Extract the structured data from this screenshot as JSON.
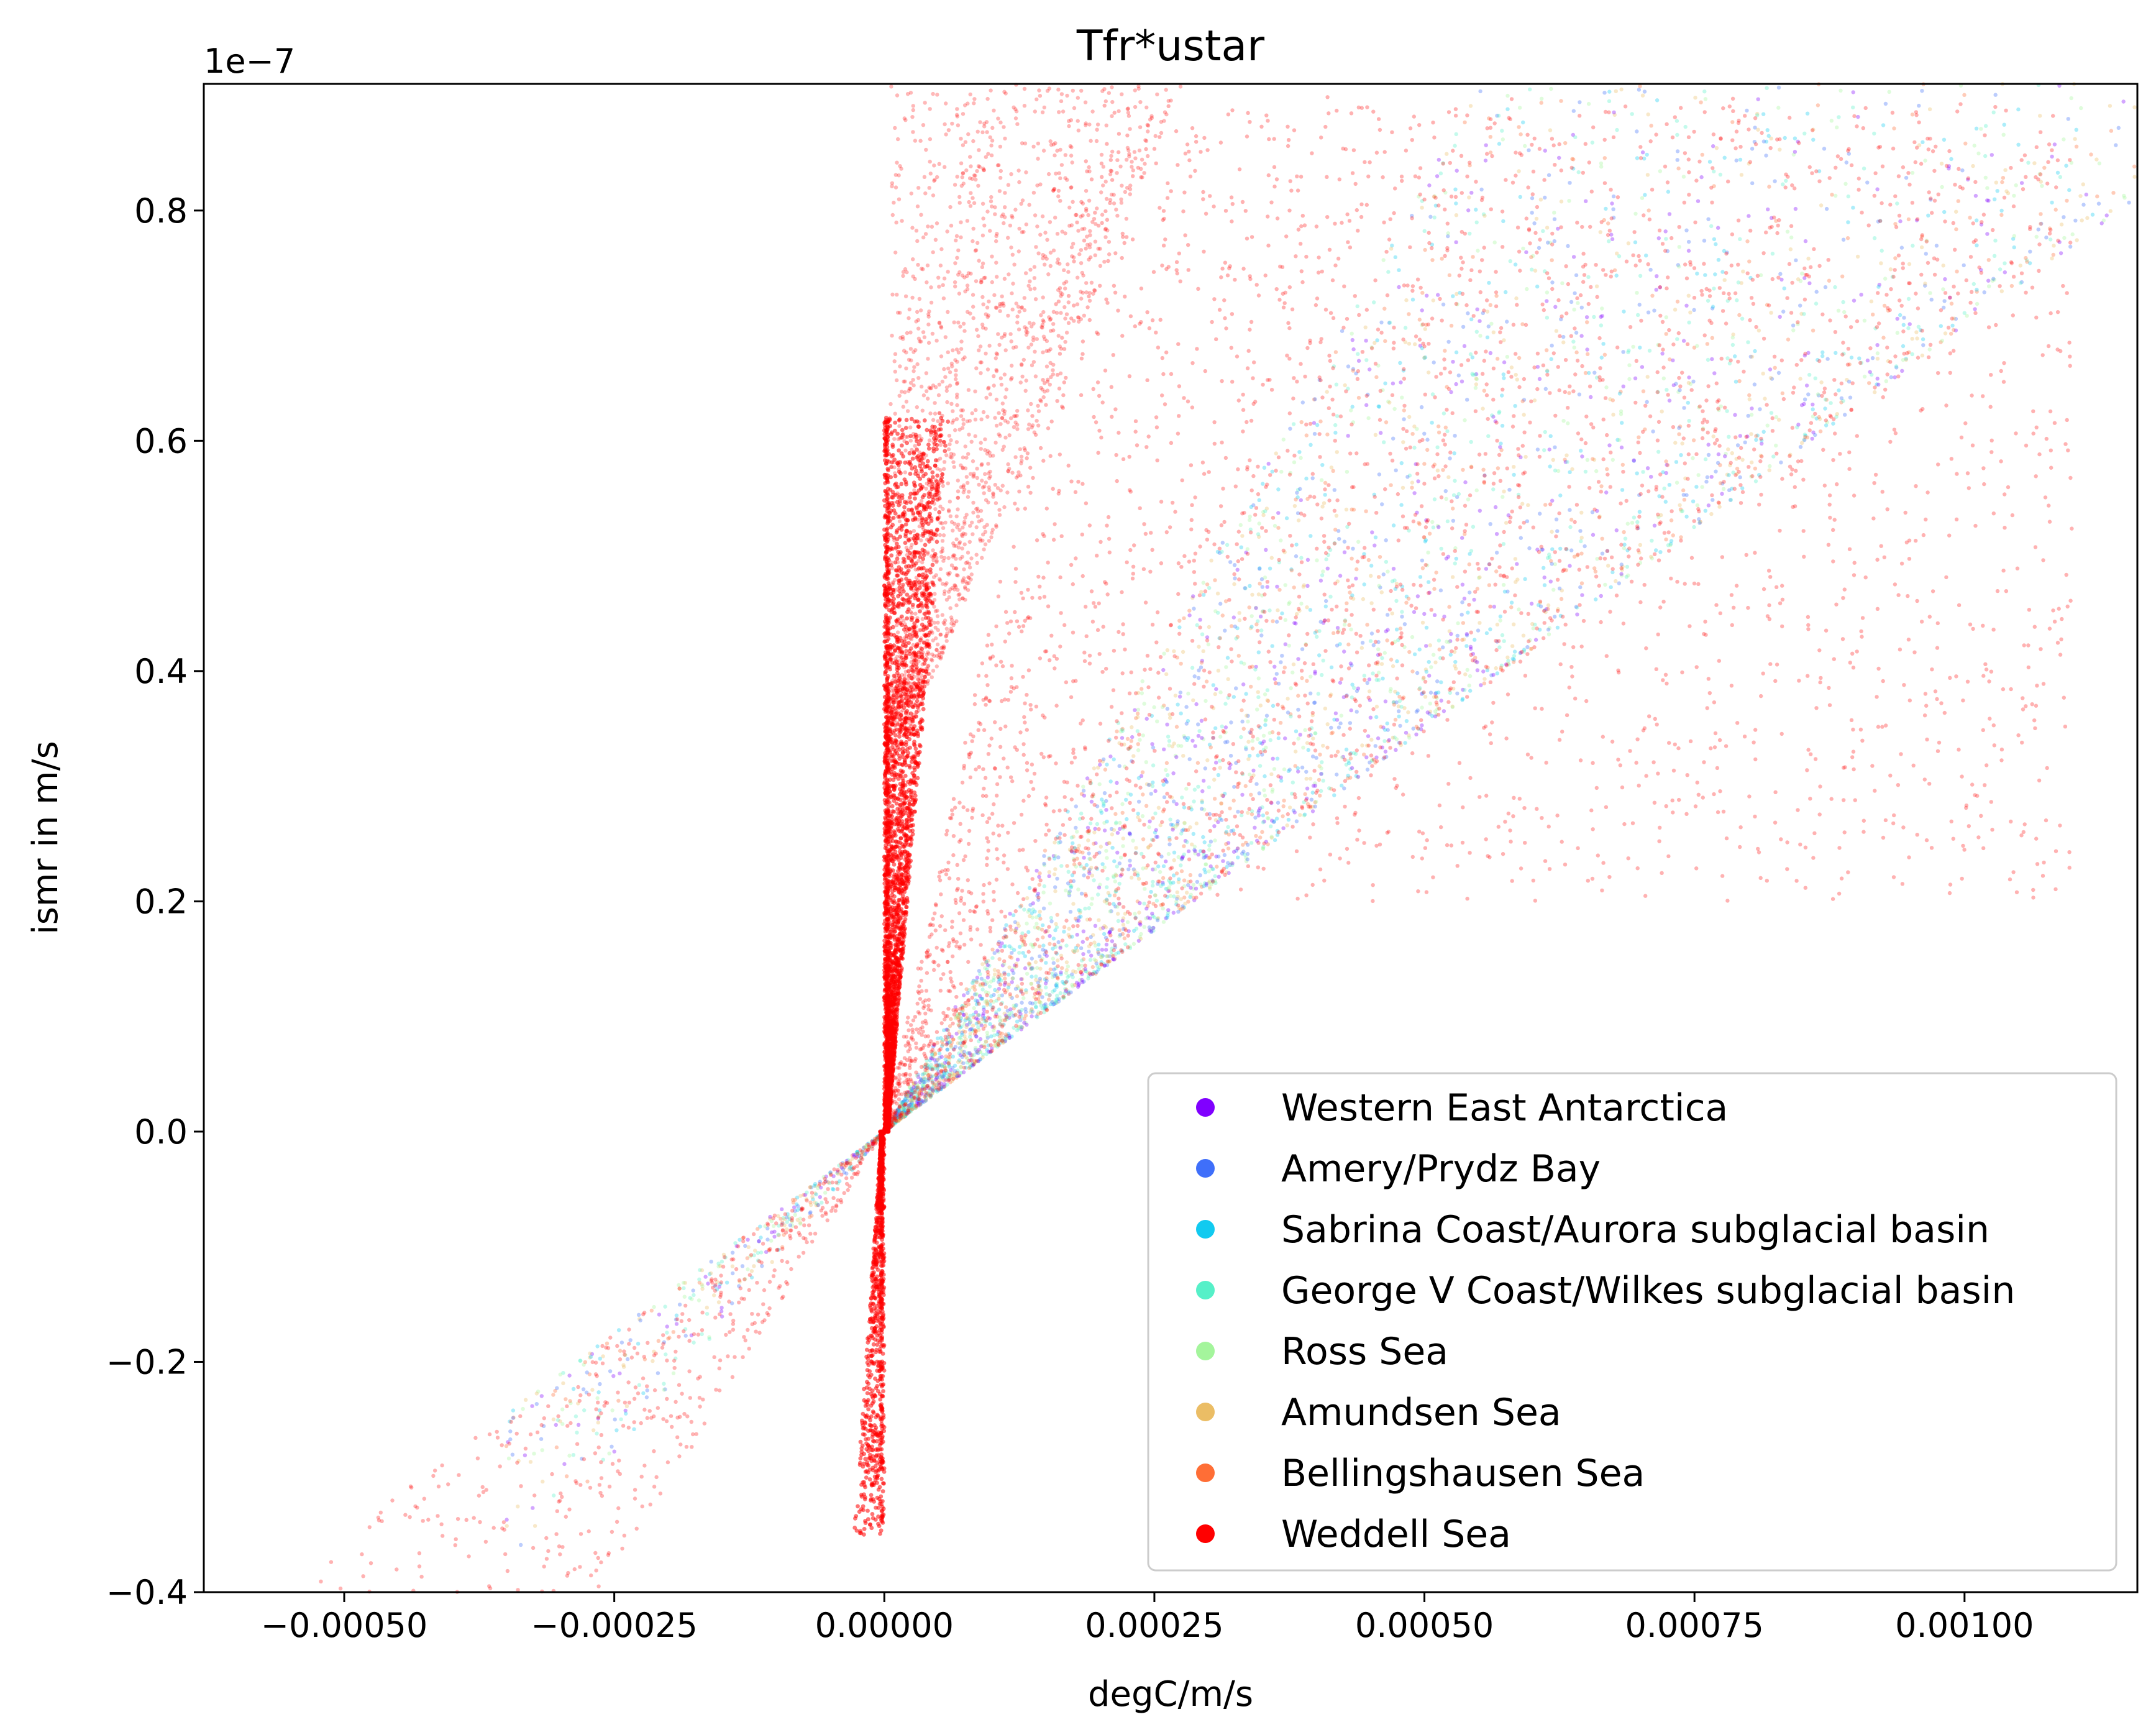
{
  "chart_data": {
    "type": "scatter",
    "title": "Tfr*ustar",
    "xlabel": "degC/m/s",
    "ylabel": "ismr in m/s",
    "y_offset_label": "1e−7",
    "xlim": [
      -0.00063,
      0.00116
    ],
    "ylim": [
      -0.4,
      0.91
    ],
    "y_scale_factor": 1e-07,
    "xticks": [
      {
        "value": -0.0005,
        "label": "−0.00050"
      },
      {
        "value": -0.00025,
        "label": "−0.00025"
      },
      {
        "value": 0.0,
        "label": "0.00000"
      },
      {
        "value": 0.00025,
        "label": "0.00025"
      },
      {
        "value": 0.0005,
        "label": "0.00050"
      },
      {
        "value": 0.00075,
        "label": "0.00075"
      },
      {
        "value": 0.001,
        "label": "0.00100"
      }
    ],
    "yticks": [
      {
        "value": -0.4,
        "label": "−0.4"
      },
      {
        "value": -0.2,
        "label": "−0.2"
      },
      {
        "value": 0.0,
        "label": "0.0"
      },
      {
        "value": 0.2,
        "label": "0.2"
      },
      {
        "value": 0.4,
        "label": "0.4"
      },
      {
        "value": 0.6,
        "label": "0.6"
      },
      {
        "value": 0.8,
        "label": "0.8"
      }
    ],
    "grid": false,
    "legend_placement": "lower-right",
    "series": [
      {
        "name": "Western East Antarctica",
        "color": "#8000ff",
        "relation": "slope ~0.70e-7 per 0.001, scattered up to ~1.3x",
        "x_range": [
          -0.0004,
          0.00116
        ]
      },
      {
        "name": "Amery/Prydz Bay",
        "color": "#3f6ffa",
        "relation": "slope ~0.70e-7 per 0.001, scattered",
        "x_range": [
          -0.0003,
          0.00116
        ]
      },
      {
        "name": "Sabrina Coast/Aurora subglacial basin",
        "color": "#11caf0",
        "relation": "slope ~0.70e-7 per 0.001, scattered",
        "x_range": [
          -0.0003,
          0.00116
        ]
      },
      {
        "name": "George V Coast/Wilkes subglacial basin",
        "color": "#56f0c8",
        "relation": "slope ~0.70e-7 per 0.001, scattered",
        "x_range": [
          -0.0003,
          0.00116
        ]
      },
      {
        "name": "Ross Sea",
        "color": "#a4f59c",
        "relation": "slope ~0.70e-7 per 0.001, scattered",
        "x_range": [
          -0.0003,
          0.00116
        ]
      },
      {
        "name": "Amundsen Sea",
        "color": "#ebbd65",
        "relation": "slope ~0.70e-7 per 0.001, scattered",
        "x_range": [
          -0.0003,
          0.00116
        ]
      },
      {
        "name": "Bellingshausen Sea",
        "color": "#ff6e36",
        "relation": "slope ~0.70e-7 per 0.001, scattered",
        "x_range": [
          -0.0003,
          0.00116
        ]
      },
      {
        "name": "Weddell Sea",
        "color": "#ff0000",
        "relation": "steep core near x=0 reaching |y|~0.4e-7 at x~0.00002, plus wide fan",
        "x_range": [
          -0.0006,
          0.0011
        ]
      }
    ]
  }
}
